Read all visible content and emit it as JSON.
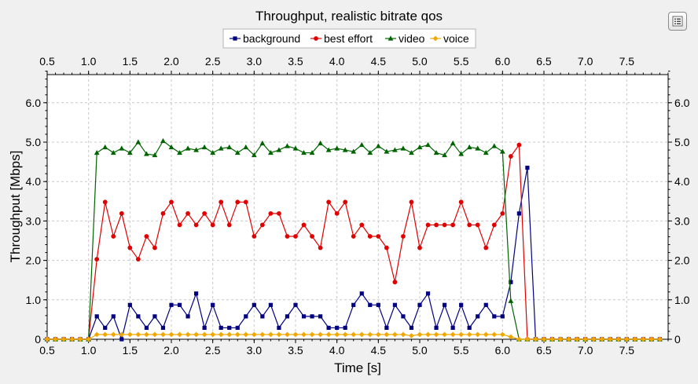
{
  "chart_data": {
    "type": "line",
    "title": "Throughput, realistic bitrate qos",
    "xlabel": "Time [s]",
    "ylabel": "Throughput [Mbps]",
    "xlim": [
      0.5,
      8.0
    ],
    "ylim": [
      0,
      6.8
    ],
    "x_ticks": [
      "0.5",
      "1.0",
      "1.5",
      "2.0",
      "2.5",
      "3.0",
      "3.5",
      "4.0",
      "4.5",
      "5.0",
      "5.5",
      "6.0",
      "6.5",
      "7.0",
      "7.5"
    ],
    "y_ticks": [
      "0",
      "1.0",
      "2.0",
      "3.0",
      "4.0",
      "5.0",
      "6.0"
    ],
    "grid": true,
    "legend_position": "top-center",
    "series": [
      {
        "name": "background",
        "color": "#000080",
        "marker": "square",
        "x": [
          0.5,
          0.6,
          0.7,
          0.8,
          0.9,
          1.0,
          1.1,
          1.2,
          1.3,
          1.4,
          1.5,
          1.6,
          1.7,
          1.8,
          1.9,
          2.0,
          2.1,
          2.2,
          2.3,
          2.4,
          2.5,
          2.6,
          2.7,
          2.8,
          2.9,
          3.0,
          3.1,
          3.2,
          3.3,
          3.4,
          3.5,
          3.6,
          3.7,
          3.8,
          3.9,
          4.0,
          4.1,
          4.2,
          4.3,
          4.4,
          4.5,
          4.6,
          4.7,
          4.8,
          4.9,
          5.0,
          5.1,
          5.2,
          5.3,
          5.4,
          5.5,
          5.6,
          5.7,
          5.8,
          5.9,
          6.0,
          6.1,
          6.2,
          6.3,
          6.4,
          6.5,
          6.6,
          6.7,
          6.8,
          6.9,
          7.0,
          7.1,
          7.2,
          7.3,
          7.4,
          7.5,
          7.6,
          7.7,
          7.8,
          7.9
        ],
        "y": [
          0,
          0,
          0,
          0,
          0,
          0,
          0.58,
          0.29,
          0.58,
          0,
          0.87,
          0.58,
          0.29,
          0.58,
          0.29,
          0.87,
          0.87,
          0.58,
          1.16,
          0.29,
          0.87,
          0.29,
          0.29,
          0.29,
          0.58,
          0.87,
          0.58,
          0.87,
          0.29,
          0.58,
          0.87,
          0.58,
          0.58,
          0.58,
          0.29,
          0.29,
          0.29,
          0.87,
          1.16,
          0.87,
          0.87,
          0.29,
          0.87,
          0.58,
          0.29,
          0.87,
          1.16,
          0.29,
          0.87,
          0.29,
          0.87,
          0.29,
          0.58,
          0.87,
          0.58,
          0.58,
          1.45,
          3.19,
          4.35,
          0,
          0,
          0,
          0,
          0,
          0,
          0,
          0,
          0,
          0,
          0,
          0,
          0,
          0,
          0,
          0
        ]
      },
      {
        "name": "best effort",
        "color": "#e00000",
        "marker": "circle",
        "x": [
          0.5,
          0.6,
          0.7,
          0.8,
          0.9,
          1.0,
          1.1,
          1.2,
          1.3,
          1.4,
          1.5,
          1.6,
          1.7,
          1.8,
          1.9,
          2.0,
          2.1,
          2.2,
          2.3,
          2.4,
          2.5,
          2.6,
          2.7,
          2.8,
          2.9,
          3.0,
          3.1,
          3.2,
          3.3,
          3.4,
          3.5,
          3.6,
          3.7,
          3.8,
          3.9,
          4.0,
          4.1,
          4.2,
          4.3,
          4.4,
          4.5,
          4.6,
          4.7,
          4.8,
          4.9,
          5.0,
          5.1,
          5.2,
          5.3,
          5.4,
          5.5,
          5.6,
          5.7,
          5.8,
          5.9,
          6.0,
          6.1,
          6.2,
          6.3,
          6.4,
          6.5,
          6.6,
          6.7,
          6.8,
          6.9,
          7.0,
          7.1,
          7.2,
          7.3,
          7.4,
          7.5,
          7.6,
          7.7,
          7.8,
          7.9
        ],
        "y": [
          0,
          0,
          0,
          0,
          0,
          0,
          2.03,
          3.48,
          2.61,
          3.19,
          2.32,
          2.03,
          2.61,
          2.32,
          3.19,
          3.48,
          2.9,
          3.19,
          2.9,
          3.19,
          2.9,
          3.48,
          2.9,
          3.48,
          3.48,
          2.61,
          2.9,
          3.19,
          3.19,
          2.61,
          2.61,
          2.9,
          2.61,
          2.32,
          3.48,
          3.19,
          3.48,
          2.61,
          2.9,
          2.61,
          2.61,
          2.32,
          1.45,
          2.61,
          3.48,
          2.32,
          2.9,
          2.9,
          2.9,
          2.9,
          3.48,
          2.9,
          2.9,
          2.32,
          2.9,
          3.19,
          4.64,
          4.93,
          0,
          0,
          0,
          0,
          0,
          0,
          0,
          0,
          0,
          0,
          0,
          0,
          0,
          0,
          0,
          0,
          0
        ]
      },
      {
        "name": "video",
        "color": "#006400",
        "marker": "triangle",
        "x": [
          0.5,
          0.6,
          0.7,
          0.8,
          0.9,
          1.0,
          1.1,
          1.2,
          1.3,
          1.4,
          1.5,
          1.6,
          1.7,
          1.8,
          1.9,
          2.0,
          2.1,
          2.2,
          2.3,
          2.4,
          2.5,
          2.6,
          2.7,
          2.8,
          2.9,
          3.0,
          3.1,
          3.2,
          3.3,
          3.4,
          3.5,
          3.6,
          3.7,
          3.8,
          3.9,
          4.0,
          4.1,
          4.2,
          4.3,
          4.4,
          4.5,
          4.6,
          4.7,
          4.8,
          4.9,
          5.0,
          5.1,
          5.2,
          5.3,
          5.4,
          5.5,
          5.6,
          5.7,
          5.8,
          5.9,
          6.0,
          6.1,
          6.2,
          6.3,
          6.4,
          6.5,
          6.6,
          6.7,
          6.8,
          6.9,
          7.0,
          7.1,
          7.2,
          7.3,
          7.4,
          7.5,
          7.6,
          7.7,
          7.8,
          7.9
        ],
        "y": [
          0,
          0,
          0,
          0,
          0,
          0,
          4.73,
          4.87,
          4.73,
          4.84,
          4.73,
          5.0,
          4.7,
          4.67,
          5.03,
          4.87,
          4.73,
          4.84,
          4.8,
          4.87,
          4.73,
          4.84,
          4.87,
          4.73,
          4.87,
          4.67,
          4.97,
          4.73,
          4.8,
          4.9,
          4.84,
          4.73,
          4.73,
          4.97,
          4.8,
          4.84,
          4.8,
          4.76,
          4.93,
          4.73,
          4.9,
          4.76,
          4.8,
          4.84,
          4.73,
          4.87,
          4.93,
          4.73,
          4.67,
          4.97,
          4.7,
          4.87,
          4.84,
          4.73,
          4.9,
          4.76,
          0.97,
          0,
          0,
          0,
          0,
          0,
          0,
          0,
          0,
          0,
          0,
          0,
          0,
          0,
          0,
          0,
          0,
          0,
          0
        ]
      },
      {
        "name": "voice",
        "color": "#f0a800",
        "marker": "diamond",
        "x": [
          0.5,
          0.6,
          0.7,
          0.8,
          0.9,
          1.0,
          1.1,
          1.2,
          1.3,
          1.4,
          1.5,
          1.6,
          1.7,
          1.8,
          1.9,
          2.0,
          2.1,
          2.2,
          2.3,
          2.4,
          2.5,
          2.6,
          2.7,
          2.8,
          2.9,
          3.0,
          3.1,
          3.2,
          3.3,
          3.4,
          3.5,
          3.6,
          3.7,
          3.8,
          3.9,
          4.0,
          4.1,
          4.2,
          4.3,
          4.4,
          4.5,
          4.6,
          4.7,
          4.8,
          4.9,
          5.0,
          5.1,
          5.2,
          5.3,
          5.4,
          5.5,
          5.6,
          5.7,
          5.8,
          5.9,
          6.0,
          6.1,
          6.2,
          6.3,
          6.4,
          6.5,
          6.6,
          6.7,
          6.8,
          6.9,
          7.0,
          7.1,
          7.2,
          7.3,
          7.4,
          7.5,
          7.6,
          7.7,
          7.8,
          7.9
        ],
        "y": [
          0,
          0,
          0,
          0,
          0,
          0,
          0.12,
          0.12,
          0.12,
          0.12,
          0.12,
          0.12,
          0.12,
          0.12,
          0.12,
          0.12,
          0.12,
          0.12,
          0.12,
          0.12,
          0.12,
          0.12,
          0.12,
          0.12,
          0.12,
          0.12,
          0.12,
          0.12,
          0.12,
          0.12,
          0.12,
          0.12,
          0.12,
          0.12,
          0.12,
          0.12,
          0.12,
          0.12,
          0.12,
          0.12,
          0.12,
          0.12,
          0.12,
          0.12,
          0.09,
          0.12,
          0.12,
          0.12,
          0.12,
          0.12,
          0.12,
          0.12,
          0.12,
          0.12,
          0.12,
          0.12,
          0.06,
          0,
          0,
          0,
          0,
          0,
          0,
          0,
          0,
          0,
          0,
          0,
          0,
          0,
          0,
          0,
          0,
          0,
          0
        ]
      }
    ]
  }
}
